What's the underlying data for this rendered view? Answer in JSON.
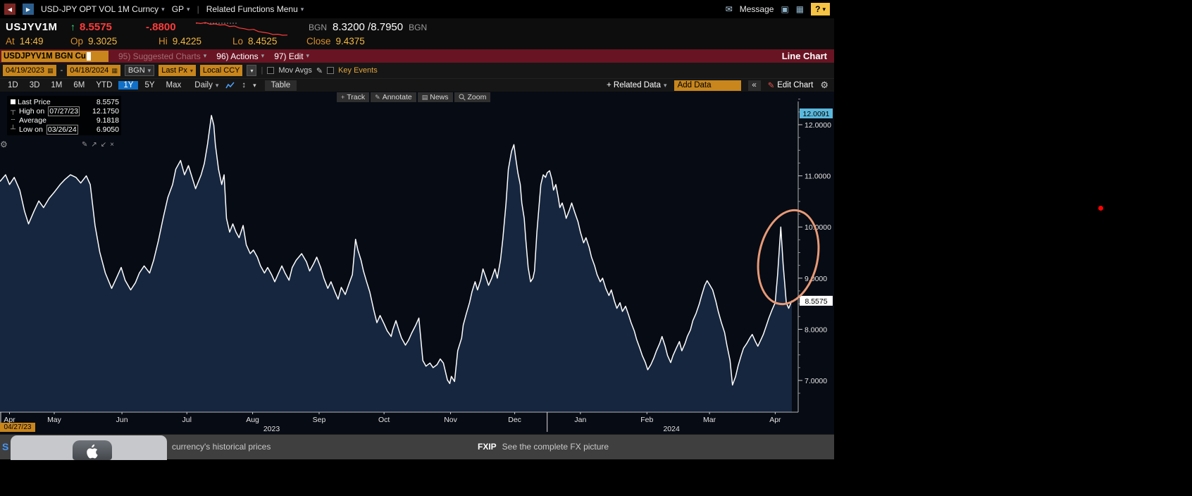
{
  "icons": {
    "back": "◀",
    "forward": "▶",
    "caret": "▾",
    "pipe": "|",
    "envelope": "✉",
    "window": "▣",
    "grid": "▦",
    "gear": "⚙",
    "pencil": "✎",
    "sort": "↕",
    "collapse": "«",
    "plus": "+",
    "news": "▤",
    "calendar": "▦",
    "expand_ne": "↗",
    "expand_sw": "↙",
    "close": "×",
    "marker_high": "┬",
    "marker_avg": "┄",
    "marker_low": "┴",
    "dash": "-",
    "up_arrow": "↑"
  },
  "window": {
    "topbar": {
      "security_menu": "USD-JPY OPT VOL 1M Curncy",
      "gp_menu": "GP",
      "related_functions": "Related Functions Menu",
      "message_label": "Message",
      "help_label": "?"
    },
    "quote": {
      "ticker": "USJYV1M",
      "last": "8.5575",
      "change": "-.8800",
      "src_left": "BGN",
      "bid_ask": "8.3200 /8.7950",
      "src_right": "BGN",
      "at_label": "At",
      "at_value": "14:49",
      "op_label": "Op",
      "op_value": "9.3025",
      "hi_label": "Hi",
      "hi_value": "9.4225",
      "lo_label": "Lo",
      "lo_value": "8.4525",
      "close_label": "Close",
      "close_value": "9.4375",
      "sparkline": [
        9.4,
        9.35,
        9.42,
        9.3,
        9.33,
        9.25,
        9.28,
        9.15,
        9.18,
        9.05,
        9.0,
        8.92,
        8.95,
        8.8,
        8.75,
        8.7,
        8.6,
        8.62,
        8.55,
        8.56
      ]
    },
    "menubar": {
      "command_field": "USDJPYV1M BGN Cu",
      "suggested_charts": "95) Suggested Charts",
      "actions": "96) Actions",
      "edit": "97) Edit",
      "title": "Line Chart"
    },
    "toolbar": {
      "date_from": "04/19/2023",
      "date_to": "04/18/2024",
      "source": "BGN",
      "px_type": "Last Px",
      "currency": "Local CCY",
      "mov_avgs": "Mov Avgs",
      "key_events": "Key Events"
    },
    "periodbar": {
      "ranges": [
        "1D",
        "3D",
        "1M",
        "6M",
        "YTD",
        "1Y",
        "5Y",
        "Max"
      ],
      "selected_range": "1Y",
      "frequency": "Daily",
      "table": "Table",
      "related_data": "+ Related Data",
      "add_data": "Add Data",
      "edit_chart": "Edit Chart"
    },
    "chart_tools": {
      "track": "Track",
      "annotate": "Annotate",
      "news": "News",
      "zoom": "Zoom"
    },
    "legend": {
      "rows": [
        {
          "label": "Last Price",
          "value": "8.5575"
        },
        {
          "label": "High on",
          "date": "07/27/23",
          "value": "12.1750"
        },
        {
          "label": "Average",
          "value": "9.1818"
        },
        {
          "label": "Low on",
          "date": "03/26/24",
          "value": "6.9050"
        }
      ]
    },
    "axis_labels": {
      "x_start_date": "04/27/23"
    },
    "statusbar": {
      "left_partial": "S",
      "left_text": "currency's historical prices",
      "fxip_code": "FXIP",
      "fxip_text": "See the complete FX picture"
    }
  },
  "colors": {
    "amber": "#c8861d",
    "selected_blue": "#1070c9",
    "red_bar": "#691423",
    "value_red": "#ff3b3b",
    "label_amber": "#d98f2b",
    "tag_cyan": "#5bb8dc",
    "annotation_salmon": "#e89a77",
    "chart_line": "#ffffff",
    "chart_fill": "#16263e",
    "chart_bg": "#070b14"
  },
  "chart_data": {
    "type": "line",
    "title": "USD-JPY OPT VOL 1M (USDJPYV1M BGN Curncy) — Last Price, 1Y Daily",
    "series_name": "Last Price",
    "last_price": 8.5575,
    "high": {
      "date": "07/27/23",
      "value": 12.175
    },
    "average": 9.1818,
    "low": {
      "date": "03/26/24",
      "value": 6.905
    },
    "x_axis": {
      "start": "04/19/2023",
      "end": "04/18/2024",
      "tick_labels": [
        "Apr",
        "May",
        "Jun",
        "Jul",
        "Aug",
        "Sep",
        "Oct",
        "Nov",
        "Dec",
        "Jan",
        "Feb",
        "Mar",
        "Apr"
      ],
      "tick_pos": [
        0.012,
        0.0685,
        0.154,
        0.236,
        0.319,
        0.403,
        0.485,
        0.569,
        0.65,
        0.733,
        0.817,
        0.896,
        0.979
      ],
      "year_labels": [
        {
          "label": "2023",
          "pos": 0.343
        },
        {
          "label": "2024",
          "pos": 0.848
        }
      ],
      "year_divider_pos": 0.691
    },
    "y_axis": {
      "min": 6.38,
      "max": 12.65,
      "ticks": [
        12,
        11,
        10,
        9,
        8,
        7
      ],
      "tracker": 12.0091,
      "grid": false
    },
    "legend_position": "top-left",
    "points": [
      [
        0,
        10.89
      ],
      [
        0.007,
        11.02
      ],
      [
        0.012,
        10.83
      ],
      [
        0.018,
        10.97
      ],
      [
        0.025,
        10.72
      ],
      [
        0.031,
        10.31
      ],
      [
        0.036,
        10.06
      ],
      [
        0.043,
        10.31
      ],
      [
        0.049,
        10.51
      ],
      [
        0.055,
        10.38
      ],
      [
        0.062,
        10.56
      ],
      [
        0.069,
        10.69
      ],
      [
        0.076,
        10.83
      ],
      [
        0.082,
        10.93
      ],
      [
        0.089,
        11.02
      ],
      [
        0.096,
        10.97
      ],
      [
        0.102,
        10.86
      ],
      [
        0.109,
        11.0
      ],
      [
        0.114,
        10.83
      ],
      [
        0.12,
        10.03
      ],
      [
        0.126,
        9.51
      ],
      [
        0.133,
        9.1
      ],
      [
        0.141,
        8.8
      ],
      [
        0.147,
        9.0
      ],
      [
        0.153,
        9.21
      ],
      [
        0.158,
        8.96
      ],
      [
        0.165,
        8.77
      ],
      [
        0.171,
        8.91
      ],
      [
        0.176,
        9.1
      ],
      [
        0.182,
        9.24
      ],
      [
        0.189,
        9.1
      ],
      [
        0.194,
        9.35
      ],
      [
        0.2,
        9.73
      ],
      [
        0.206,
        10.17
      ],
      [
        0.212,
        10.58
      ],
      [
        0.218,
        10.83
      ],
      [
        0.222,
        11.13
      ],
      [
        0.228,
        11.3
      ],
      [
        0.233,
        11.02
      ],
      [
        0.238,
        11.2
      ],
      [
        0.242,
        11.0
      ],
      [
        0.247,
        10.75
      ],
      [
        0.254,
        11.02
      ],
      [
        0.258,
        11.24
      ],
      [
        0.262,
        11.61
      ],
      [
        0.267,
        12.18
      ],
      [
        0.27,
        11.99
      ],
      [
        0.272,
        11.61
      ],
      [
        0.276,
        11.13
      ],
      [
        0.28,
        10.83
      ],
      [
        0.283,
        11.02
      ],
      [
        0.286,
        10.17
      ],
      [
        0.29,
        9.9
      ],
      [
        0.294,
        10.06
      ],
      [
        0.298,
        9.9
      ],
      [
        0.302,
        9.79
      ],
      [
        0.307,
        10.03
      ],
      [
        0.311,
        9.65
      ],
      [
        0.316,
        9.48
      ],
      [
        0.32,
        9.55
      ],
      [
        0.325,
        9.41
      ],
      [
        0.329,
        9.24
      ],
      [
        0.334,
        9.1
      ],
      [
        0.338,
        9.21
      ],
      [
        0.343,
        9.07
      ],
      [
        0.347,
        8.93
      ],
      [
        0.351,
        9.07
      ],
      [
        0.356,
        9.24
      ],
      [
        0.36,
        9.1
      ],
      [
        0.365,
        8.96
      ],
      [
        0.369,
        9.21
      ],
      [
        0.374,
        9.35
      ],
      [
        0.381,
        9.48
      ],
      [
        0.387,
        9.32
      ],
      [
        0.391,
        9.14
      ],
      [
        0.396,
        9.28
      ],
      [
        0.4,
        9.41
      ],
      [
        0.405,
        9.21
      ],
      [
        0.409,
        9.0
      ],
      [
        0.414,
        8.8
      ],
      [
        0.418,
        8.93
      ],
      [
        0.423,
        8.73
      ],
      [
        0.427,
        8.59
      ],
      [
        0.431,
        8.82
      ],
      [
        0.436,
        8.68
      ],
      [
        0.44,
        8.86
      ],
      [
        0.445,
        9.07
      ],
      [
        0.449,
        9.76
      ],
      [
        0.452,
        9.55
      ],
      [
        0.456,
        9.35
      ],
      [
        0.459,
        9.14
      ],
      [
        0.463,
        8.93
      ],
      [
        0.467,
        8.73
      ],
      [
        0.472,
        8.38
      ],
      [
        0.476,
        8.13
      ],
      [
        0.48,
        8.27
      ],
      [
        0.485,
        8.11
      ],
      [
        0.489,
        7.97
      ],
      [
        0.494,
        7.86
      ],
      [
        0.496,
        7.99
      ],
      [
        0.5,
        8.17
      ],
      [
        0.504,
        7.97
      ],
      [
        0.507,
        7.83
      ],
      [
        0.512,
        7.69
      ],
      [
        0.516,
        7.79
      ],
      [
        0.52,
        7.93
      ],
      [
        0.525,
        8.08
      ],
      [
        0.529,
        8.22
      ],
      [
        0.534,
        7.39
      ],
      [
        0.538,
        7.28
      ],
      [
        0.543,
        7.34
      ],
      [
        0.547,
        7.25
      ],
      [
        0.552,
        7.31
      ],
      [
        0.556,
        7.42
      ],
      [
        0.56,
        7.34
      ],
      [
        0.565,
        7.01
      ],
      [
        0.568,
        6.94
      ],
      [
        0.57,
        7.08
      ],
      [
        0.574,
        6.98
      ],
      [
        0.578,
        7.58
      ],
      [
        0.583,
        7.83
      ],
      [
        0.585,
        8.08
      ],
      [
        0.589,
        8.31
      ],
      [
        0.593,
        8.52
      ],
      [
        0.596,
        8.73
      ],
      [
        0.6,
        8.93
      ],
      [
        0.603,
        8.77
      ],
      [
        0.607,
        8.96
      ],
      [
        0.61,
        9.18
      ],
      [
        0.614,
        9.0
      ],
      [
        0.617,
        8.86
      ],
      [
        0.621,
        9.0
      ],
      [
        0.625,
        9.18
      ],
      [
        0.628,
        9.0
      ],
      [
        0.632,
        9.35
      ],
      [
        0.635,
        9.76
      ],
      [
        0.639,
        10.45
      ],
      [
        0.642,
        11.13
      ],
      [
        0.646,
        11.48
      ],
      [
        0.649,
        11.61
      ],
      [
        0.651,
        11.38
      ],
      [
        0.654,
        11.06
      ],
      [
        0.657,
        10.83
      ],
      [
        0.659,
        10.47
      ],
      [
        0.662,
        10.17
      ],
      [
        0.664,
        9.76
      ],
      [
        0.667,
        9.21
      ],
      [
        0.67,
        8.93
      ],
      [
        0.673,
        9.0
      ],
      [
        0.675,
        9.14
      ],
      [
        0.678,
        9.9
      ],
      [
        0.681,
        10.45
      ],
      [
        0.683,
        10.83
      ],
      [
        0.686,
        11.02
      ],
      [
        0.689,
        10.97
      ],
      [
        0.691,
        11.06
      ],
      [
        0.694,
        11.1
      ],
      [
        0.697,
        10.93
      ],
      [
        0.699,
        10.72
      ],
      [
        0.702,
        10.83
      ],
      [
        0.705,
        10.58
      ],
      [
        0.707,
        10.38
      ],
      [
        0.71,
        10.47
      ],
      [
        0.713,
        10.31
      ],
      [
        0.715,
        10.17
      ],
      [
        0.719,
        10.33
      ],
      [
        0.722,
        10.47
      ],
      [
        0.726,
        10.28
      ],
      [
        0.73,
        10.1
      ],
      [
        0.733,
        9.9
      ],
      [
        0.737,
        9.69
      ],
      [
        0.74,
        9.79
      ],
      [
        0.744,
        9.6
      ],
      [
        0.747,
        9.41
      ],
      [
        0.751,
        9.24
      ],
      [
        0.754,
        9.07
      ],
      [
        0.758,
        8.93
      ],
      [
        0.761,
        9.0
      ],
      [
        0.765,
        8.8
      ],
      [
        0.769,
        8.66
      ],
      [
        0.772,
        8.77
      ],
      [
        0.776,
        8.55
      ],
      [
        0.779,
        8.41
      ],
      [
        0.783,
        8.52
      ],
      [
        0.786,
        8.35
      ],
      [
        0.79,
        8.45
      ],
      [
        0.794,
        8.27
      ],
      [
        0.797,
        8.13
      ],
      [
        0.801,
        7.97
      ],
      [
        0.804,
        7.8
      ],
      [
        0.808,
        7.63
      ],
      [
        0.811,
        7.49
      ],
      [
        0.815,
        7.35
      ],
      [
        0.818,
        7.21
      ],
      [
        0.822,
        7.31
      ],
      [
        0.826,
        7.45
      ],
      [
        0.829,
        7.58
      ],
      [
        0.833,
        7.72
      ],
      [
        0.836,
        7.86
      ],
      [
        0.84,
        7.67
      ],
      [
        0.843,
        7.49
      ],
      [
        0.847,
        7.35
      ],
      [
        0.85,
        7.49
      ],
      [
        0.854,
        7.63
      ],
      [
        0.858,
        7.76
      ],
      [
        0.861,
        7.58
      ],
      [
        0.865,
        7.72
      ],
      [
        0.868,
        7.86
      ],
      [
        0.872,
        7.99
      ],
      [
        0.875,
        8.17
      ],
      [
        0.879,
        8.31
      ],
      [
        0.883,
        8.49
      ],
      [
        0.886,
        8.66
      ],
      [
        0.89,
        8.86
      ],
      [
        0.893,
        8.95
      ],
      [
        0.897,
        8.85
      ],
      [
        0.9,
        8.77
      ],
      [
        0.904,
        8.55
      ],
      [
        0.907,
        8.35
      ],
      [
        0.911,
        8.13
      ],
      [
        0.915,
        7.94
      ],
      [
        0.918,
        7.69
      ],
      [
        0.922,
        7.39
      ],
      [
        0.925,
        6.91
      ],
      [
        0.929,
        7.08
      ],
      [
        0.932,
        7.28
      ],
      [
        0.936,
        7.49
      ],
      [
        0.939,
        7.63
      ],
      [
        0.943,
        7.72
      ],
      [
        0.947,
        7.83
      ],
      [
        0.95,
        7.9
      ],
      [
        0.954,
        7.76
      ],
      [
        0.957,
        7.67
      ],
      [
        0.961,
        7.8
      ],
      [
        0.964,
        7.9
      ],
      [
        0.968,
        8.08
      ],
      [
        0.971,
        8.22
      ],
      [
        0.975,
        8.38
      ],
      [
        0.979,
        8.52
      ],
      [
        0.982,
        9.07
      ],
      [
        0.986,
        10.0
      ],
      [
        0.989,
        9.28
      ],
      [
        0.993,
        8.52
      ],
      [
        0.996,
        8.41
      ],
      [
        1,
        8.56
      ]
    ]
  }
}
